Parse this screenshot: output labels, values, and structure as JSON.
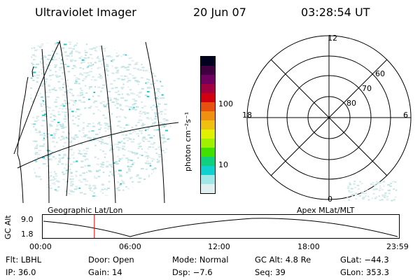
{
  "header": {
    "instrument": "Ultraviolet Imager",
    "date": "20 Jun 07",
    "time": "03:28:54 UT"
  },
  "colorbar": {
    "label": "photon cm⁻²s⁻¹",
    "ticks": [
      "100",
      "10"
    ],
    "colors": [
      "#000020",
      "#400040",
      "#700060",
      "#a00040",
      "#d00010",
      "#e85010",
      "#f09010",
      "#f0c010",
      "#e0f000",
      "#a0f000",
      "#40e000",
      "#10d080",
      "#10d0d0",
      "#a0e8e8",
      "#e0f0f0"
    ]
  },
  "polar_plot": {
    "mlt_labels": [
      "12",
      "6",
      "0",
      "18"
    ],
    "lat_labels": [
      "60",
      "70",
      "80"
    ]
  },
  "map_labels": {
    "left": "Geographic Lat/Lon",
    "right": "Apex MLat/MLT"
  },
  "timeline": {
    "y_label": "GC Alt",
    "y_ticks": [
      "9.0",
      "1.8"
    ],
    "x_ticks": [
      "00:00",
      "06:00",
      "12:00",
      "18:00",
      "23:59"
    ],
    "current_fraction": 0.145
  },
  "info": {
    "flt": "Flt: LBHL",
    "door": "Door: Open",
    "mode": "Mode: Normal",
    "gcalt": "GC Alt: 4.8 Re",
    "glat": "GLat: −44.3",
    "ip": "IP: 36.0",
    "gain": "Gain: 14",
    "dsp": "Dsp:   −7.6",
    "seq": "Seq: 39",
    "glon": "GLon: 353.3"
  }
}
